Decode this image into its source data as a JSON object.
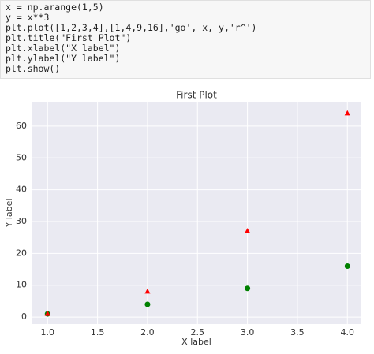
{
  "code": [
    "x = np.arange(1,5)",
    "y = x**3",
    "plt.plot([1,2,3,4],[1,4,9,16],'go', x, y,'r^')",
    "plt.title(\"First Plot\")",
    "plt.xlabel(\"X label\")",
    "plt.ylabel(\"Y label\")",
    "plt.show()"
  ],
  "chart_data": {
    "type": "scatter",
    "title": "First Plot",
    "x_label": "X label",
    "y_label": "Y label",
    "x": [
      1,
      2,
      3,
      4
    ],
    "series": [
      {
        "name": "go",
        "color": "#008000",
        "marker": "o",
        "values": [
          1,
          4,
          9,
          16
        ]
      },
      {
        "name": "r^",
        "color": "#ff0000",
        "marker": "^",
        "values": [
          1,
          8,
          27,
          64
        ]
      }
    ],
    "xlim": [
      0.84,
      4.14
    ],
    "ylim": [
      -2.2,
      67.4
    ],
    "xticks": [
      {
        "value": 1,
        "label": "1.0"
      },
      {
        "value": 1.5,
        "label": "1.5"
      },
      {
        "value": 2,
        "label": "2.0"
      },
      {
        "value": 2.5,
        "label": "2.5"
      },
      {
        "value": 3,
        "label": "3.0"
      },
      {
        "value": 3.5,
        "label": "3.5"
      },
      {
        "value": 4,
        "label": "4.0"
      }
    ],
    "yticks": [
      0,
      10,
      20,
      30,
      40,
      50,
      60
    ],
    "grid": true
  }
}
